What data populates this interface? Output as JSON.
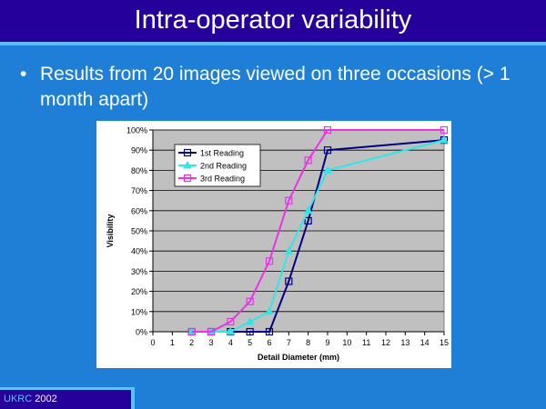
{
  "slide": {
    "title": "Intra-operator variability",
    "bullet_symbol": "•",
    "bullet_text": "Results from 20 images viewed on three occasions (> 1 month apart)",
    "footer_brand": "UKRC",
    "footer_year": "2002"
  },
  "colors": {
    "title_bar": "#26009b",
    "background": "#1f7fd6",
    "accent": "#5fbfff",
    "plot_area": "#c0c0c0"
  },
  "chart_data": {
    "type": "line",
    "title": "",
    "xlabel": "Detail Diameter (mm)",
    "ylabel": "Visibility",
    "xlim": [
      0,
      15
    ],
    "ylim": [
      0,
      100
    ],
    "x_ticks": [
      0,
      1,
      2,
      3,
      4,
      5,
      6,
      7,
      8,
      9,
      10,
      11,
      12,
      13,
      14,
      15
    ],
    "y_ticks": [
      0,
      10,
      20,
      30,
      40,
      50,
      60,
      70,
      80,
      90,
      100
    ],
    "y_tick_suffix": "%",
    "grid": true,
    "legend_position": "top-left",
    "series": [
      {
        "name": "1st Reading",
        "color": "#000080",
        "marker": "square",
        "x": [
          2,
          3,
          4,
          5,
          6,
          7,
          8,
          9,
          15
        ],
        "y": [
          0,
          0,
          0,
          0,
          0,
          25,
          55,
          90,
          95
        ]
      },
      {
        "name": "2nd Reading",
        "color": "#33e5e5",
        "marker": "triangle",
        "x": [
          2,
          3,
          4,
          5,
          6,
          7,
          8,
          9,
          15
        ],
        "y": [
          0,
          0,
          0,
          5,
          10,
          40,
          60,
          80,
          95
        ]
      },
      {
        "name": "3rd Reading",
        "color": "#e833e8",
        "marker": "square",
        "x": [
          2,
          3,
          4,
          5,
          6,
          7,
          8,
          9,
          15
        ],
        "y": [
          0,
          0,
          5,
          15,
          35,
          65,
          85,
          100,
          100
        ]
      }
    ]
  }
}
